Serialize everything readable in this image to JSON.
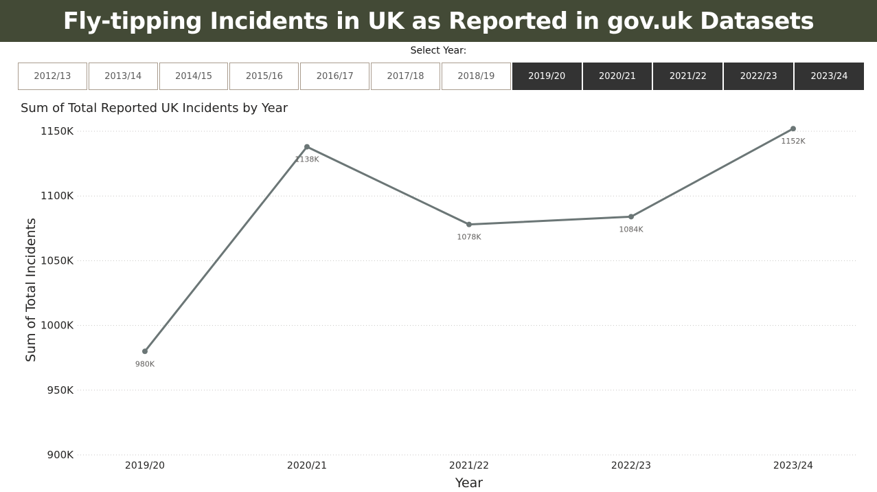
{
  "header": {
    "title": "Fly-tipping Incidents in UK as Reported in gov.uk Datasets"
  },
  "slicer": {
    "label": "Select Year:",
    "options": [
      {
        "label": "2012/13",
        "selected": false
      },
      {
        "label": "2013/14",
        "selected": false
      },
      {
        "label": "2014/15",
        "selected": false
      },
      {
        "label": "2015/16",
        "selected": false
      },
      {
        "label": "2016/17",
        "selected": false
      },
      {
        "label": "2017/18",
        "selected": false
      },
      {
        "label": "2018/19",
        "selected": false
      },
      {
        "label": "2019/20",
        "selected": true
      },
      {
        "label": "2020/21",
        "selected": true
      },
      {
        "label": "2021/22",
        "selected": true
      },
      {
        "label": "2022/23",
        "selected": true
      },
      {
        "label": "2023/24",
        "selected": true
      }
    ]
  },
  "chart_data": {
    "type": "line",
    "title": "Sum of Total Reported UK Incidents by Year",
    "xlabel": "Year",
    "ylabel": "Sum of Total Incidents",
    "categories": [
      "2019/20",
      "2020/21",
      "2021/22",
      "2022/23",
      "2023/24"
    ],
    "series": [
      {
        "values": [
          980,
          1138,
          1078,
          1084,
          1152
        ]
      }
    ],
    "data_labels": [
      "980K",
      "1138K",
      "1078K",
      "1084K",
      "1152K"
    ],
    "y_ticks": [
      900,
      950,
      1000,
      1050,
      1100,
      1150
    ],
    "y_tick_labels": [
      "900K",
      "950K",
      "1000K",
      "1050K",
      "1100K",
      "1150K"
    ],
    "ylim": [
      900,
      1150
    ],
    "grid": true,
    "legend": "none",
    "line_color": "#6b7676"
  }
}
